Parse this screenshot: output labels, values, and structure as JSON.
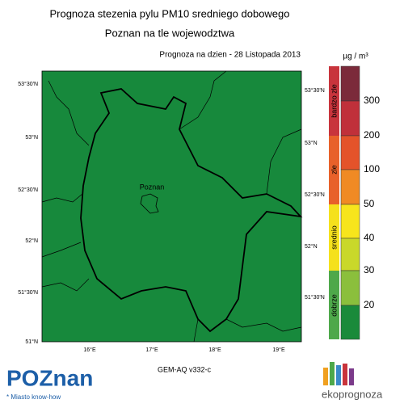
{
  "title": {
    "line1": "Prognoza stezenia pylu PM10 sredniego dobowego",
    "line2": "Poznan na tle wojewodztwa"
  },
  "forecast_date": "Prognoza na dzien -  28 Listopada 2013",
  "map": {
    "lat_labels_left": [
      "53°30'N",
      "53°N",
      "52°30'N",
      "52°N",
      "51°30'N",
      "51°N"
    ],
    "lat_labels_right": [
      "53°30'N",
      "53°N",
      "52°30'N",
      "52°N",
      "51°30'N"
    ],
    "lon_labels": [
      "16°E",
      "17°E",
      "18°E",
      "19°E"
    ],
    "city_label": "Poznan"
  },
  "legend": {
    "unit": "µg / m³",
    "categories": [
      "bardzo zle",
      "zle",
      "srednio",
      "dobrze"
    ],
    "levels": [
      300,
      200,
      100,
      50,
      40,
      30,
      20
    ]
  },
  "model": "GEM-AQ v332-c",
  "logos": {
    "city": "POZnan",
    "city_tagline": "* Miasto know-how",
    "brand": "ekoprognoza"
  }
}
